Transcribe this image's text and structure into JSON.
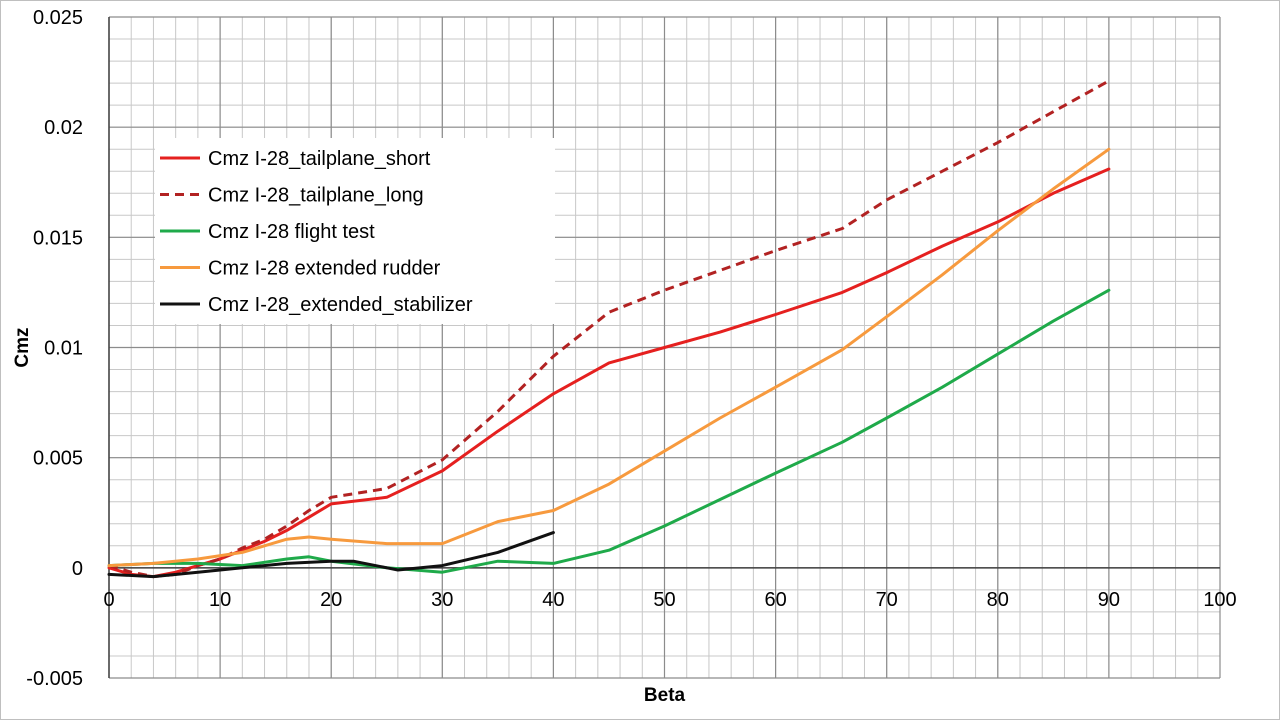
{
  "chart_data": {
    "type": "line",
    "title": "",
    "xlabel": "Beta",
    "ylabel": "Cmz",
    "xlim": [
      0,
      100
    ],
    "ylim": [
      -0.005,
      0.025
    ],
    "x_ticks": [
      "0",
      "10",
      "20",
      "30",
      "40",
      "50",
      "60",
      "70",
      "80",
      "90",
      "100"
    ],
    "y_ticks": [
      "-0.005",
      "0",
      "0.005",
      "0.01",
      "0.015",
      "0.02",
      "0.025"
    ],
    "grid": true,
    "legend_position": "upper-left",
    "series": [
      {
        "name": "Cmz I-28_tailplane_short",
        "color": "#e5201f",
        "dash": "solid",
        "points": [
          [
            0,
            0.0
          ],
          [
            2,
            -0.0003
          ],
          [
            4,
            -0.0004
          ],
          [
            6,
            -0.0002
          ],
          [
            8,
            0.0001
          ],
          [
            10,
            0.0004
          ],
          [
            12,
            0.0008
          ],
          [
            14,
            0.0012
          ],
          [
            16,
            0.0017
          ],
          [
            18,
            0.0023
          ],
          [
            20,
            0.0029
          ],
          [
            25,
            0.0032
          ],
          [
            30,
            0.0044
          ],
          [
            35,
            0.0062
          ],
          [
            40,
            0.0079
          ],
          [
            45,
            0.0093
          ],
          [
            50,
            0.01
          ],
          [
            55,
            0.0107
          ],
          [
            60,
            0.0115
          ],
          [
            66,
            0.0125
          ],
          [
            70,
            0.0134
          ],
          [
            75,
            0.0146
          ],
          [
            80,
            0.0157
          ],
          [
            85,
            0.017
          ],
          [
            90,
            0.0181
          ]
        ]
      },
      {
        "name": "Cmz I-28_tailplane_long",
        "color": "#b22222",
        "dash": "dashed",
        "points": [
          [
            0,
            0.0001
          ],
          [
            2,
            -0.0002
          ],
          [
            4,
            -0.0004
          ],
          [
            6,
            -0.0003
          ],
          [
            8,
            0.0001
          ],
          [
            10,
            0.0004
          ],
          [
            12,
            0.0009
          ],
          [
            14,
            0.0013
          ],
          [
            16,
            0.0019
          ],
          [
            18,
            0.0026
          ],
          [
            20,
            0.0032
          ],
          [
            25,
            0.0036
          ],
          [
            30,
            0.0049
          ],
          [
            35,
            0.0071
          ],
          [
            40,
            0.0096
          ],
          [
            45,
            0.0116
          ],
          [
            50,
            0.0126
          ],
          [
            55,
            0.0135
          ],
          [
            60,
            0.0144
          ],
          [
            66,
            0.0154
          ],
          [
            70,
            0.0167
          ],
          [
            75,
            0.018
          ],
          [
            80,
            0.0193
          ],
          [
            85,
            0.0207
          ],
          [
            90,
            0.0221
          ]
        ]
      },
      {
        "name": "Cmz I-28 flight test",
        "color": "#1faa4a",
        "dash": "solid",
        "points": [
          [
            0,
            0.0001
          ],
          [
            4,
            0.0002
          ],
          [
            8,
            0.0002
          ],
          [
            12,
            0.0001
          ],
          [
            16,
            0.0004
          ],
          [
            18,
            0.0005
          ],
          [
            20,
            0.0003
          ],
          [
            25,
            0.0
          ],
          [
            30,
            -0.0002
          ],
          [
            35,
            0.0003
          ],
          [
            40,
            0.0002
          ],
          [
            45,
            0.0008
          ],
          [
            50,
            0.0019
          ],
          [
            55,
            0.0031
          ],
          [
            60,
            0.0043
          ],
          [
            66,
            0.0057
          ],
          [
            70,
            0.0068
          ],
          [
            75,
            0.0082
          ],
          [
            80,
            0.0097
          ],
          [
            85,
            0.0112
          ],
          [
            90,
            0.0126
          ]
        ]
      },
      {
        "name": "Cmz I-28 extended rudder",
        "color": "#f79a3e",
        "dash": "solid",
        "points": [
          [
            0,
            0.0001
          ],
          [
            4,
            0.0002
          ],
          [
            8,
            0.0004
          ],
          [
            12,
            0.0007
          ],
          [
            16,
            0.0013
          ],
          [
            18,
            0.0014
          ],
          [
            20,
            0.0013
          ],
          [
            25,
            0.0011
          ],
          [
            30,
            0.0011
          ],
          [
            35,
            0.0021
          ],
          [
            40,
            0.0026
          ],
          [
            45,
            0.0038
          ],
          [
            50,
            0.0053
          ],
          [
            55,
            0.0068
          ],
          [
            60,
            0.0082
          ],
          [
            66,
            0.0099
          ],
          [
            70,
            0.0114
          ],
          [
            75,
            0.0133
          ],
          [
            80,
            0.0153
          ],
          [
            85,
            0.0172
          ],
          [
            90,
            0.019
          ]
        ]
      },
      {
        "name": "Cmz I-28_extended_stabilizer",
        "color": "#111111",
        "dash": "solid",
        "points": [
          [
            0,
            -0.0003
          ],
          [
            4,
            -0.0004
          ],
          [
            8,
            -0.0002
          ],
          [
            12,
            0.0
          ],
          [
            16,
            0.0002
          ],
          [
            20,
            0.0003
          ],
          [
            22,
            0.0003
          ],
          [
            26,
            -0.0001
          ],
          [
            30,
            0.0001
          ],
          [
            35,
            0.0007
          ],
          [
            40,
            0.0016
          ]
        ]
      }
    ]
  }
}
